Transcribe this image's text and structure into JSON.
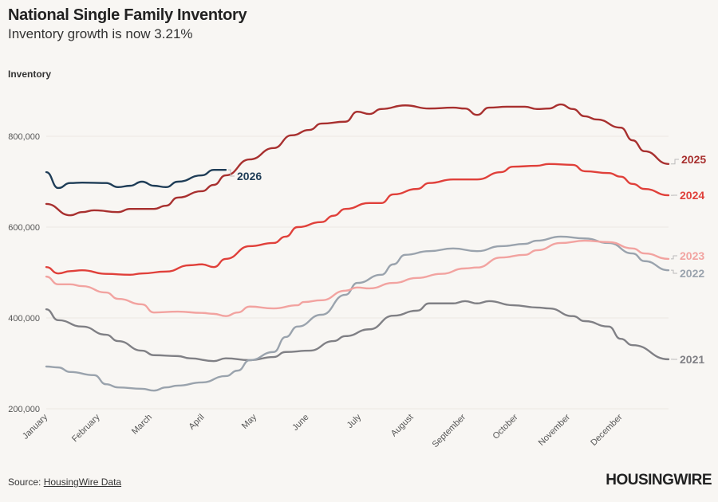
{
  "title": "National Single Family Inventory",
  "subtitle": "Inventory growth is now 3.21%",
  "source": {
    "prefix": "Source: ",
    "link": "HousingWire Data"
  },
  "logo": "HOUSINGWIRE",
  "chart_data": {
    "type": "line",
    "title": "National Single Family Inventory",
    "subtitle": "Inventory growth is now 3.21%",
    "ylabel": "Inventory",
    "xlabel": "",
    "x_unit": "week of year",
    "x_ticks": [
      "January",
      "February",
      "March",
      "April",
      "May",
      "June",
      "July",
      "August",
      "September",
      "October",
      "November",
      "December"
    ],
    "y_ticks": [
      200000,
      400000,
      600000,
      800000
    ],
    "y_tick_labels": [
      "200,000",
      "400,000",
      "600,000",
      "800,000"
    ],
    "ylim": [
      200000,
      900000
    ],
    "xlim": [
      1,
      53
    ],
    "grid": true,
    "legend": "direct labels at line ends",
    "series": [
      {
        "name": "2021",
        "color": "#808085",
        "points": [
          [
            1,
            419000
          ],
          [
            2,
            395000
          ],
          [
            4,
            381000
          ],
          [
            6,
            363000
          ],
          [
            7,
            349000
          ],
          [
            9,
            328000
          ],
          [
            10,
            318000
          ],
          [
            12,
            316000
          ],
          [
            13,
            311000
          ],
          [
            15,
            305000
          ],
          [
            16,
            311000
          ],
          [
            18,
            307000
          ],
          [
            20,
            314000
          ],
          [
            21,
            325000
          ],
          [
            23,
            328000
          ],
          [
            25,
            349000
          ],
          [
            26,
            360000
          ],
          [
            28,
            375000
          ],
          [
            30,
            405000
          ],
          [
            32,
            416000
          ],
          [
            33,
            432000
          ],
          [
            35,
            432000
          ],
          [
            36,
            437000
          ],
          [
            37,
            432000
          ],
          [
            38,
            437000
          ],
          [
            40,
            428000
          ],
          [
            42,
            423000
          ],
          [
            43,
            421000
          ],
          [
            45,
            404000
          ],
          [
            46,
            393000
          ],
          [
            48,
            381000
          ],
          [
            49,
            354000
          ],
          [
            50,
            340000
          ],
          [
            53,
            309000
          ]
        ]
      },
      {
        "name": "2022",
        "color": "#9aa3ad",
        "points": [
          [
            1,
            293000
          ],
          [
            2,
            291000
          ],
          [
            3,
            281000
          ],
          [
            5,
            274000
          ],
          [
            6,
            254000
          ],
          [
            7,
            247000
          ],
          [
            9,
            244000
          ],
          [
            10,
            240000
          ],
          [
            11,
            247000
          ],
          [
            12,
            251000
          ],
          [
            14,
            258000
          ],
          [
            16,
            272000
          ],
          [
            17,
            284000
          ],
          [
            18,
            307000
          ],
          [
            20,
            325000
          ],
          [
            21,
            358000
          ],
          [
            22,
            381000
          ],
          [
            24,
            407000
          ],
          [
            26,
            451000
          ],
          [
            27,
            477000
          ],
          [
            29,
            495000
          ],
          [
            30,
            518000
          ],
          [
            31,
            539000
          ],
          [
            33,
            547000
          ],
          [
            35,
            553000
          ],
          [
            37,
            547000
          ],
          [
            39,
            558000
          ],
          [
            41,
            563000
          ],
          [
            42,
            570000
          ],
          [
            44,
            579000
          ],
          [
            46,
            575000
          ],
          [
            48,
            565000
          ],
          [
            50,
            542000
          ],
          [
            51,
            525000
          ],
          [
            53,
            505000
          ]
        ]
      },
      {
        "name": "2023",
        "color": "#f2a3a0",
        "points": [
          [
            1,
            491000
          ],
          [
            2,
            474000
          ],
          [
            3,
            474000
          ],
          [
            4,
            470000
          ],
          [
            6,
            456000
          ],
          [
            7,
            442000
          ],
          [
            9,
            430000
          ],
          [
            10,
            412000
          ],
          [
            12,
            414000
          ],
          [
            14,
            411000
          ],
          [
            15,
            409000
          ],
          [
            16,
            404000
          ],
          [
            17,
            412000
          ],
          [
            18,
            425000
          ],
          [
            20,
            421000
          ],
          [
            22,
            428000
          ],
          [
            22.5,
            435000
          ],
          [
            24,
            439000
          ],
          [
            26,
            460000
          ],
          [
            27,
            467000
          ],
          [
            28,
            465000
          ],
          [
            30,
            477000
          ],
          [
            32,
            488000
          ],
          [
            34,
            497000
          ],
          [
            36,
            509000
          ],
          [
            37,
            511000
          ],
          [
            39,
            533000
          ],
          [
            41,
            539000
          ],
          [
            42,
            549000
          ],
          [
            44,
            565000
          ],
          [
            46,
            570000
          ],
          [
            48,
            567000
          ],
          [
            50,
            553000
          ],
          [
            51,
            542000
          ],
          [
            53,
            530000
          ]
        ]
      },
      {
        "name": "2024",
        "color": "#e0403a",
        "points": [
          [
            1,
            512000
          ],
          [
            2,
            498000
          ],
          [
            3,
            503000
          ],
          [
            4,
            505000
          ],
          [
            6,
            497000
          ],
          [
            8,
            495000
          ],
          [
            9,
            498000
          ],
          [
            11,
            502000
          ],
          [
            13,
            516000
          ],
          [
            14,
            518000
          ],
          [
            15,
            512000
          ],
          [
            16,
            530000
          ],
          [
            18,
            558000
          ],
          [
            20,
            565000
          ],
          [
            21,
            579000
          ],
          [
            22,
            600000
          ],
          [
            24,
            611000
          ],
          [
            25,
            625000
          ],
          [
            26,
            640000
          ],
          [
            28,
            653000
          ],
          [
            29,
            653000
          ],
          [
            30,
            672000
          ],
          [
            32,
            684000
          ],
          [
            33,
            697000
          ],
          [
            35,
            705000
          ],
          [
            37,
            705000
          ],
          [
            39,
            721000
          ],
          [
            40,
            733000
          ],
          [
            42,
            735000
          ],
          [
            43,
            739000
          ],
          [
            45,
            737000
          ],
          [
            46,
            723000
          ],
          [
            48,
            719000
          ],
          [
            49,
            711000
          ],
          [
            50,
            695000
          ],
          [
            51,
            684000
          ],
          [
            53,
            670000
          ]
        ]
      },
      {
        "name": "2025",
        "color": "#a8302f",
        "points": [
          [
            1,
            651000
          ],
          [
            3,
            626000
          ],
          [
            4,
            633000
          ],
          [
            5,
            637000
          ],
          [
            7,
            633000
          ],
          [
            8,
            640000
          ],
          [
            10,
            640000
          ],
          [
            11,
            647000
          ],
          [
            12,
            665000
          ],
          [
            14,
            679000
          ],
          [
            15,
            693000
          ],
          [
            16,
            714000
          ],
          [
            18,
            749000
          ],
          [
            20,
            774000
          ],
          [
            21.5,
            802000
          ],
          [
            23,
            814000
          ],
          [
            24,
            828000
          ],
          [
            26,
            832000
          ],
          [
            27,
            854000
          ],
          [
            28,
            849000
          ],
          [
            29,
            860000
          ],
          [
            31,
            868000
          ],
          [
            33,
            861000
          ],
          [
            35,
            863000
          ],
          [
            36,
            861000
          ],
          [
            37,
            847000
          ],
          [
            38,
            863000
          ],
          [
            39.5,
            865000
          ],
          [
            41,
            865000
          ],
          [
            42,
            860000
          ],
          [
            43,
            861000
          ],
          [
            44,
            870000
          ],
          [
            45,
            860000
          ],
          [
            46,
            844000
          ],
          [
            47,
            837000
          ],
          [
            49,
            819000
          ],
          [
            50,
            791000
          ],
          [
            51,
            767000
          ],
          [
            53,
            739000
          ]
        ]
      },
      {
        "name": "2026",
        "color": "#1f3d57",
        "points": [
          [
            1,
            721000
          ],
          [
            2,
            686000
          ],
          [
            3,
            697000
          ],
          [
            4,
            698000
          ],
          [
            6,
            697000
          ],
          [
            7,
            688000
          ],
          [
            8,
            691000
          ],
          [
            9,
            700000
          ],
          [
            10,
            691000
          ],
          [
            11,
            688000
          ],
          [
            12,
            700000
          ],
          [
            14,
            714000
          ],
          [
            15,
            726000
          ],
          [
            16,
            726000
          ]
        ]
      }
    ]
  }
}
